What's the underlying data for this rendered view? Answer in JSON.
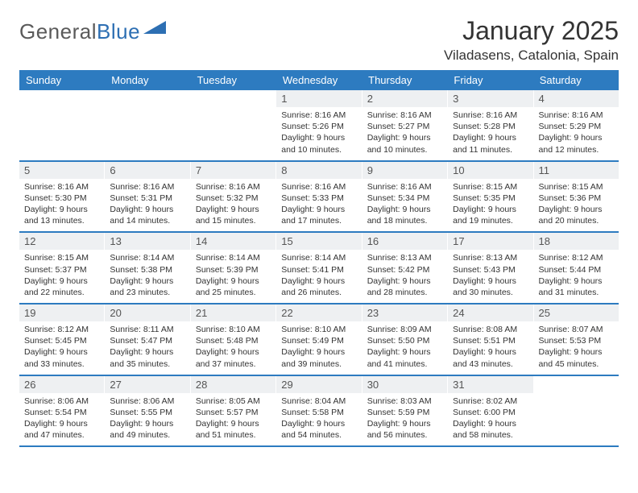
{
  "brand": {
    "name1": "General",
    "name2": "Blue"
  },
  "title": "January 2025",
  "location": "Viladasens, Catalonia, Spain",
  "colors": {
    "header_bg": "#2d7bc0",
    "header_text": "#ffffff",
    "daynum_bg": "#eef0f2",
    "daynum_text": "#555555",
    "body_text": "#333333",
    "rule": "#2d7bc0",
    "logo_gray": "#5a5a5a",
    "logo_blue": "#2d6fb3"
  },
  "weekdays": [
    "Sunday",
    "Monday",
    "Tuesday",
    "Wednesday",
    "Thursday",
    "Friday",
    "Saturday"
  ],
  "weeks": [
    [
      {
        "n": "",
        "sr": "",
        "ss": "",
        "dl": ""
      },
      {
        "n": "",
        "sr": "",
        "ss": "",
        "dl": ""
      },
      {
        "n": "",
        "sr": "",
        "ss": "",
        "dl": ""
      },
      {
        "n": "1",
        "sr": "8:16 AM",
        "ss": "5:26 PM",
        "dl": "9 hours and 10 minutes."
      },
      {
        "n": "2",
        "sr": "8:16 AM",
        "ss": "5:27 PM",
        "dl": "9 hours and 10 minutes."
      },
      {
        "n": "3",
        "sr": "8:16 AM",
        "ss": "5:28 PM",
        "dl": "9 hours and 11 minutes."
      },
      {
        "n": "4",
        "sr": "8:16 AM",
        "ss": "5:29 PM",
        "dl": "9 hours and 12 minutes."
      }
    ],
    [
      {
        "n": "5",
        "sr": "8:16 AM",
        "ss": "5:30 PM",
        "dl": "9 hours and 13 minutes."
      },
      {
        "n": "6",
        "sr": "8:16 AM",
        "ss": "5:31 PM",
        "dl": "9 hours and 14 minutes."
      },
      {
        "n": "7",
        "sr": "8:16 AM",
        "ss": "5:32 PM",
        "dl": "9 hours and 15 minutes."
      },
      {
        "n": "8",
        "sr": "8:16 AM",
        "ss": "5:33 PM",
        "dl": "9 hours and 17 minutes."
      },
      {
        "n": "9",
        "sr": "8:16 AM",
        "ss": "5:34 PM",
        "dl": "9 hours and 18 minutes."
      },
      {
        "n": "10",
        "sr": "8:15 AM",
        "ss": "5:35 PM",
        "dl": "9 hours and 19 minutes."
      },
      {
        "n": "11",
        "sr": "8:15 AM",
        "ss": "5:36 PM",
        "dl": "9 hours and 20 minutes."
      }
    ],
    [
      {
        "n": "12",
        "sr": "8:15 AM",
        "ss": "5:37 PM",
        "dl": "9 hours and 22 minutes."
      },
      {
        "n": "13",
        "sr": "8:14 AM",
        "ss": "5:38 PM",
        "dl": "9 hours and 23 minutes."
      },
      {
        "n": "14",
        "sr": "8:14 AM",
        "ss": "5:39 PM",
        "dl": "9 hours and 25 minutes."
      },
      {
        "n": "15",
        "sr": "8:14 AM",
        "ss": "5:41 PM",
        "dl": "9 hours and 26 minutes."
      },
      {
        "n": "16",
        "sr": "8:13 AM",
        "ss": "5:42 PM",
        "dl": "9 hours and 28 minutes."
      },
      {
        "n": "17",
        "sr": "8:13 AM",
        "ss": "5:43 PM",
        "dl": "9 hours and 30 minutes."
      },
      {
        "n": "18",
        "sr": "8:12 AM",
        "ss": "5:44 PM",
        "dl": "9 hours and 31 minutes."
      }
    ],
    [
      {
        "n": "19",
        "sr": "8:12 AM",
        "ss": "5:45 PM",
        "dl": "9 hours and 33 minutes."
      },
      {
        "n": "20",
        "sr": "8:11 AM",
        "ss": "5:47 PM",
        "dl": "9 hours and 35 minutes."
      },
      {
        "n": "21",
        "sr": "8:10 AM",
        "ss": "5:48 PM",
        "dl": "9 hours and 37 minutes."
      },
      {
        "n": "22",
        "sr": "8:10 AM",
        "ss": "5:49 PM",
        "dl": "9 hours and 39 minutes."
      },
      {
        "n": "23",
        "sr": "8:09 AM",
        "ss": "5:50 PM",
        "dl": "9 hours and 41 minutes."
      },
      {
        "n": "24",
        "sr": "8:08 AM",
        "ss": "5:51 PM",
        "dl": "9 hours and 43 minutes."
      },
      {
        "n": "25",
        "sr": "8:07 AM",
        "ss": "5:53 PM",
        "dl": "9 hours and 45 minutes."
      }
    ],
    [
      {
        "n": "26",
        "sr": "8:06 AM",
        "ss": "5:54 PM",
        "dl": "9 hours and 47 minutes."
      },
      {
        "n": "27",
        "sr": "8:06 AM",
        "ss": "5:55 PM",
        "dl": "9 hours and 49 minutes."
      },
      {
        "n": "28",
        "sr": "8:05 AM",
        "ss": "5:57 PM",
        "dl": "9 hours and 51 minutes."
      },
      {
        "n": "29",
        "sr": "8:04 AM",
        "ss": "5:58 PM",
        "dl": "9 hours and 54 minutes."
      },
      {
        "n": "30",
        "sr": "8:03 AM",
        "ss": "5:59 PM",
        "dl": "9 hours and 56 minutes."
      },
      {
        "n": "31",
        "sr": "8:02 AM",
        "ss": "6:00 PM",
        "dl": "9 hours and 58 minutes."
      },
      {
        "n": "",
        "sr": "",
        "ss": "",
        "dl": ""
      }
    ]
  ],
  "labels": {
    "sunrise": "Sunrise:",
    "sunset": "Sunset:",
    "daylight": "Daylight:"
  }
}
